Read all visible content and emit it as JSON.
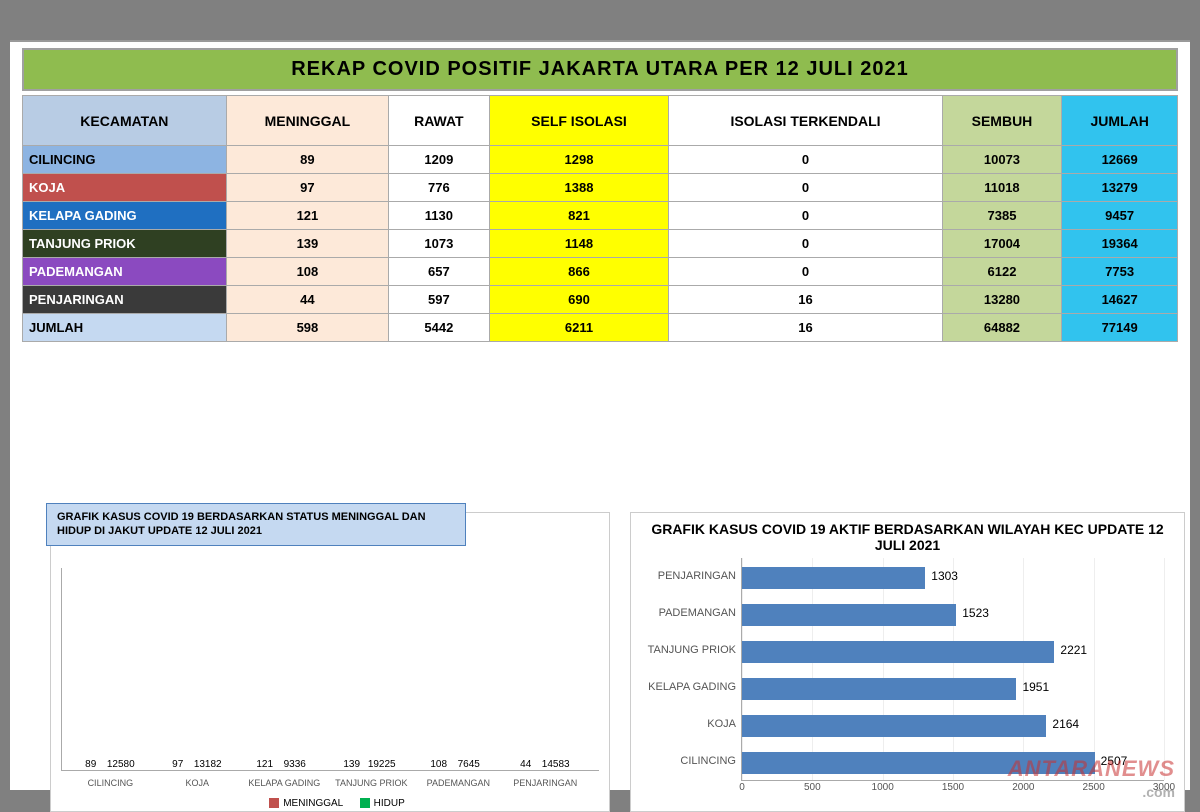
{
  "title": "REKAP COVID POSITIF JAKARTA UTARA PER 12 JULI 2021",
  "header": {
    "cols": [
      "KECAMATAN",
      "MENINGGAL",
      "RAWAT",
      "SELF ISOLASI",
      "ISOLASI TERKENDALI",
      "SEMBUH",
      "JUMLAH"
    ],
    "bg": [
      "#b8cce4",
      "#fde9d9",
      "#ffffff",
      "#ffff00",
      "#ffffff",
      "#c4d79b",
      "#31c3ee"
    ]
  },
  "rows": [
    {
      "kec": "CILINCING",
      "kcolor": "#8db4e2",
      "v": [
        "89",
        "1209",
        "1298",
        "0",
        "10073",
        "12669"
      ]
    },
    {
      "kec": "KOJA",
      "kcolor": "#c0504d",
      "v": [
        "97",
        "776",
        "1388",
        "0",
        "11018",
        "13279"
      ]
    },
    {
      "kec": "KELAPA GADING",
      "kcolor": "#1f6fc1",
      "v": [
        "121",
        "1130",
        "821",
        "0",
        "7385",
        "9457"
      ]
    },
    {
      "kec": "TANJUNG PRIOK",
      "kcolor": "#2f4022",
      "v": [
        "139",
        "1073",
        "1148",
        "0",
        "17004",
        "19364"
      ]
    },
    {
      "kec": "PADEMANGAN",
      "kcolor": "#8b4ac0",
      "v": [
        "108",
        "657",
        "866",
        "0",
        "6122",
        "7753"
      ]
    },
    {
      "kec": "PENJARINGAN",
      "kcolor": "#3a3a3a",
      "v": [
        "44",
        "597",
        "690",
        "16",
        "13280",
        "14627"
      ]
    },
    {
      "kec": "JUMLAH",
      "kcolor": "#c5d9f1",
      "v": [
        "598",
        "5442",
        "6211",
        "16",
        "64882",
        "77149"
      ]
    }
  ],
  "col_bg": [
    "#fde9d9",
    "#ffffff",
    "#ffff00",
    "#ffffff",
    "#c4d79b",
    "#31c3ee"
  ],
  "chart_left": {
    "title": "GRAFIK KASUS COVID 19 BERDASARKAN STATUS MENINGGAL DAN HIDUP DI JAKUT UPDATE 12 JULI 2021",
    "type": "grouped-bar",
    "cats": [
      "CILINCING",
      "KOJA",
      "KELAPA GADING",
      "TANJUNG PRIOK",
      "PADEMANGAN",
      "PENJARINGAN"
    ],
    "dead": [
      89,
      97,
      121,
      139,
      108,
      44
    ],
    "alive": [
      12580,
      13182,
      9336,
      19225,
      7645,
      14583
    ],
    "ymax": 20000,
    "color_dead": "#c0504d",
    "color_alive": "#00b050",
    "legend": [
      "MENINGGAL",
      "HIDUP"
    ]
  },
  "chart_right": {
    "title": "GRAFIK KASUS COVID 19 AKTIF BERDASARKAN WILAYAH KEC UPDATE 12 JULI 2021",
    "type": "hbar",
    "cats": [
      "PENJARINGAN",
      "PADEMANGAN",
      "TANJUNG PRIOK",
      "KELAPA GADING",
      "KOJA",
      "CILINCING"
    ],
    "vals": [
      1303,
      1523,
      2221,
      1951,
      2164,
      2507
    ],
    "xmax": 3000,
    "xticks": [
      0,
      500,
      1000,
      1500,
      2000,
      2500,
      3000
    ],
    "bar_color": "#4f81bd"
  },
  "watermark": "ANTARANEWS",
  "watermark2": ".com"
}
